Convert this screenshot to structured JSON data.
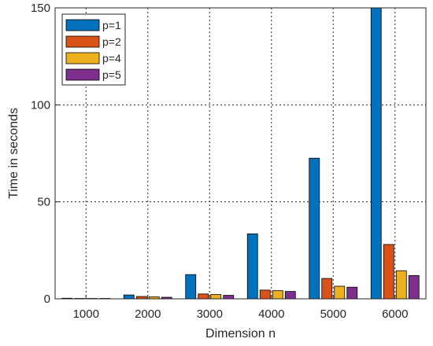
{
  "chart_data": {
    "type": "bar",
    "title": "",
    "xlabel": "Dimension  n",
    "ylabel": "Time in seconds",
    "categories": [
      "1000",
      "2000",
      "3000",
      "4000",
      "5000",
      "6000"
    ],
    "ylim": [
      0,
      150
    ],
    "yticks": [
      "0",
      "50",
      "100",
      "150"
    ],
    "grid": true,
    "legend_position": "top-left",
    "series": [
      {
        "name": "p=1",
        "color": "#0072BD",
        "values": [
          0.3,
          2.0,
          12.5,
          33.5,
          72.5,
          150
        ]
      },
      {
        "name": "p=2",
        "color": "#D95319",
        "values": [
          0.2,
          1.2,
          2.5,
          4.5,
          10.5,
          28.0
        ]
      },
      {
        "name": "p=4",
        "color": "#EDB120",
        "values": [
          0.2,
          1.0,
          2.2,
          4.2,
          6.5,
          14.5
        ]
      },
      {
        "name": "p=5",
        "color": "#7E2F8E",
        "values": [
          0.2,
          0.8,
          1.8,
          3.8,
          6.0,
          12.0
        ]
      }
    ]
  }
}
